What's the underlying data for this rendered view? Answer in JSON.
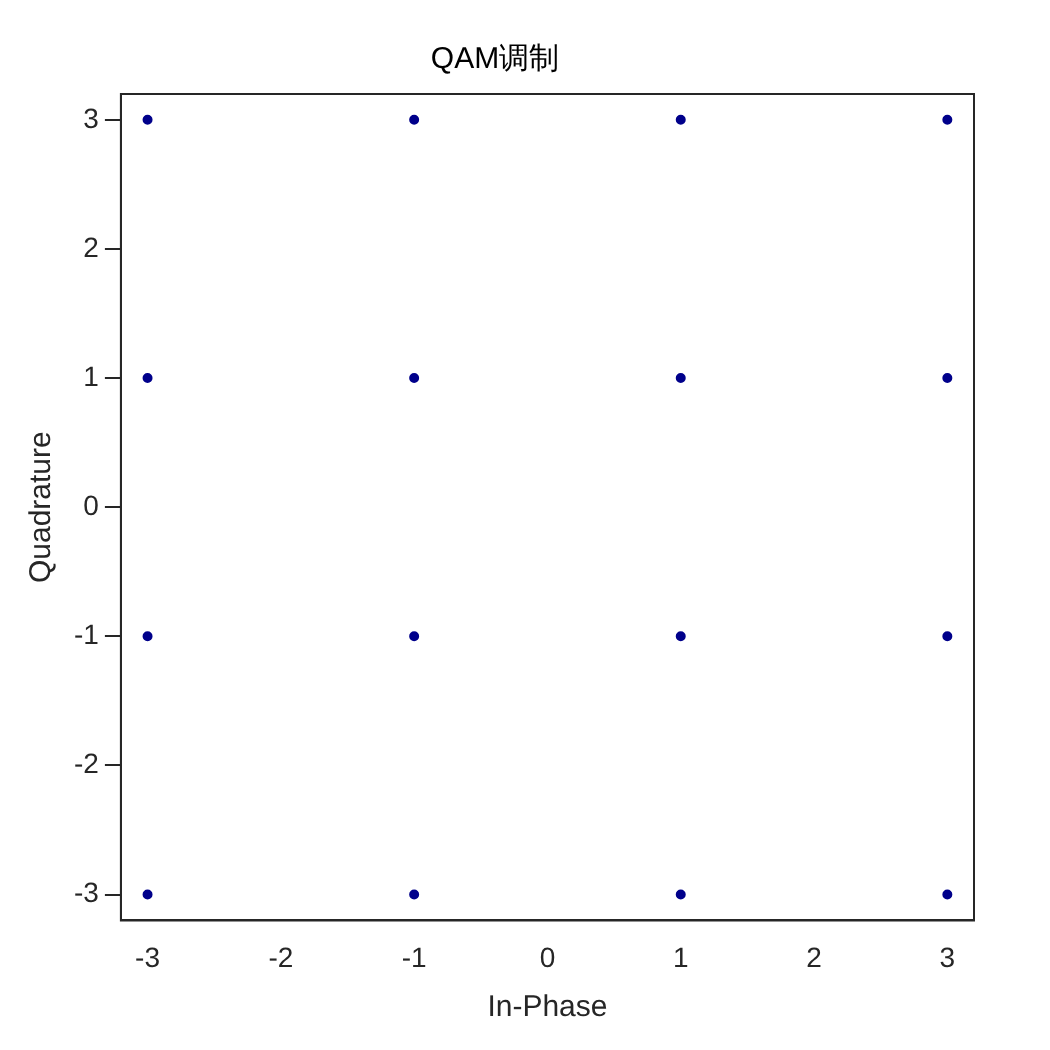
{
  "chart_data": {
    "type": "scatter",
    "title": "QAM调制",
    "xlabel": "In-Phase",
    "ylabel": "Quadrature",
    "x": [
      -3,
      -3,
      -3,
      -3,
      -1,
      -1,
      -1,
      -1,
      1,
      1,
      1,
      1,
      3,
      3,
      3,
      3
    ],
    "series": [
      {
        "color": "#00008b",
        "values": [
          3,
          1,
          -1,
          -3,
          3,
          1,
          -1,
          -3,
          3,
          1,
          -1,
          -3,
          3,
          1,
          -1,
          -3
        ]
      }
    ],
    "xlim": [
      -3.2,
      3.2
    ],
    "ylim": [
      -3.2,
      3.2
    ],
    "xticks": [
      -3,
      -2,
      -1,
      0,
      1,
      2,
      3
    ],
    "yticks": [
      -3,
      -2,
      -1,
      0,
      1,
      2,
      3
    ],
    "marker": "circle",
    "grid": false,
    "legend": false
  }
}
